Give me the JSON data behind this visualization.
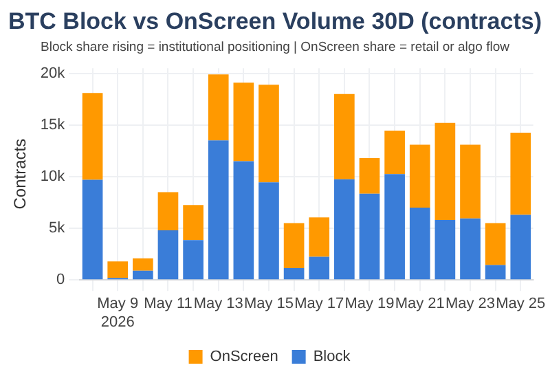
{
  "chart_data": {
    "type": "bar",
    "title": "BTC Block vs OnScreen Volume 30D (contracts)",
    "subtitle": "Block share rising = institutional positioning | OnScreen share = retail or algo flow",
    "ylabel": "Contracts",
    "categories": [
      null,
      "May 9\n2026",
      null,
      "May 11",
      null,
      "May 13",
      null,
      "May 15",
      null,
      "May 17",
      null,
      "May 19",
      null,
      "May 21",
      null,
      "May 23",
      null,
      "May 25"
    ],
    "series": [
      {
        "name": "Block",
        "color": "#3a7dd8",
        "values": [
          9700,
          200,
          900,
          4800,
          3850,
          13500,
          11500,
          9450,
          1150,
          2250,
          9750,
          8350,
          10250,
          7000,
          5800,
          5950,
          1450,
          6300
        ]
      },
      {
        "name": "OnScreen",
        "color": "#ff9900",
        "values": [
          8400,
          1600,
          1200,
          3700,
          3400,
          6400,
          7600,
          9450,
          4350,
          3800,
          8250,
          3450,
          4200,
          6100,
          9400,
          7150,
          4050,
          7950
        ]
      }
    ],
    "stacked": true,
    "ylim": [
      0,
      20500
    ],
    "yticks": [
      {
        "value": 0,
        "label": "0"
      },
      {
        "value": 5000,
        "label": "5k"
      },
      {
        "value": 10000,
        "label": "10k"
      },
      {
        "value": 15000,
        "label": "15k"
      },
      {
        "value": 20000,
        "label": "20k"
      }
    ],
    "grid": true,
    "legend": "bottom"
  }
}
